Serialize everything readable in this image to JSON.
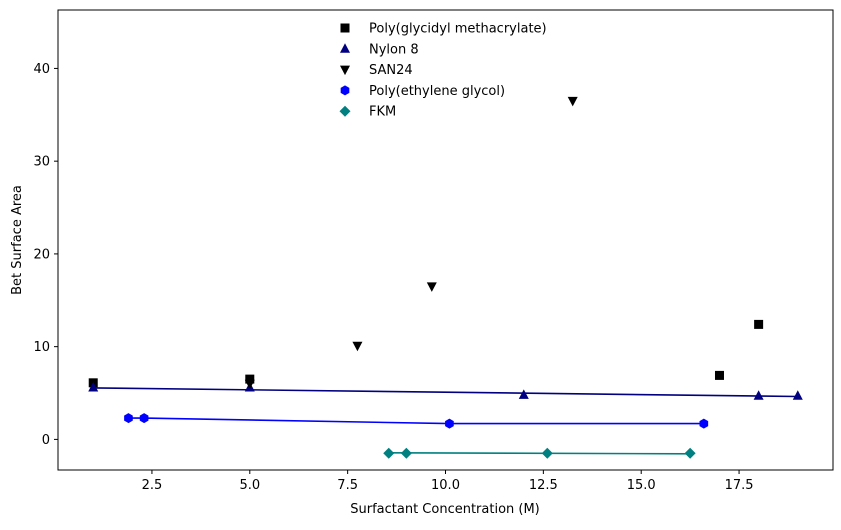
{
  "chart_data": {
    "type": "scatter",
    "title": "",
    "xlabel": "Surfactant Concentration (M)",
    "ylabel": "Bet Surface Area",
    "xlim": [
      0.1,
      19.9
    ],
    "ylim": [
      -3.3,
      46.3
    ],
    "xticks": [
      2.5,
      5.0,
      7.5,
      10.0,
      12.5,
      15.0,
      17.5
    ],
    "xtick_labels": [
      "2.5",
      "5.0",
      "7.5",
      "10.0",
      "12.5",
      "15.0",
      "17.5"
    ],
    "yticks": [
      0,
      10,
      20,
      30,
      40
    ],
    "ytick_labels": [
      "0",
      "10",
      "20",
      "30",
      "40"
    ],
    "grid": false,
    "legend_position": "top-center",
    "series": [
      {
        "name": "Poly(glycidyl methacrylate)",
        "marker": "square",
        "color": "#000000",
        "x": [
          1.0,
          5.0,
          17.0,
          18.0
        ],
        "y": [
          6.1,
          6.5,
          6.9,
          12.4
        ],
        "fit_line": null
      },
      {
        "name": "Nylon 8",
        "marker": "triangle-up",
        "color": "#000080",
        "x": [
          1.0,
          5.0,
          12.0,
          18.0,
          19.0
        ],
        "y": [
          5.6,
          5.6,
          4.8,
          4.7,
          4.7
        ],
        "fit_line": {
          "x": [
            1.0,
            19.0
          ],
          "y": [
            5.55,
            4.62
          ],
          "color": "#000080"
        }
      },
      {
        "name": "SAN24",
        "marker": "triangle-down",
        "color": "#000000",
        "x": [
          5.0,
          7.75,
          9.65,
          13.25
        ],
        "y": [
          6.0,
          10.1,
          16.5,
          36.5
        ],
        "fit_line": null
      },
      {
        "name": "Poly(ethylene glycol)",
        "marker": "hexagon",
        "color": "#0000ff",
        "x": [
          1.9,
          2.3,
          10.1,
          16.6
        ],
        "y": [
          2.3,
          2.3,
          1.7,
          1.7
        ],
        "fit_line": {
          "x": [
            1.9,
            2.3,
            10.1,
            16.6
          ],
          "y": [
            2.3,
            2.3,
            1.7,
            1.7
          ],
          "color": "#0000ff"
        }
      },
      {
        "name": "FKM",
        "marker": "diamond",
        "color": "#008080",
        "x": [
          8.55,
          9.0,
          12.6,
          16.25
        ],
        "y": [
          -1.5,
          -1.5,
          -1.5,
          -1.5
        ],
        "fit_line": {
          "x": [
            8.55,
            16.25
          ],
          "y": [
            -1.45,
            -1.55
          ],
          "color": "#008080"
        }
      }
    ]
  }
}
